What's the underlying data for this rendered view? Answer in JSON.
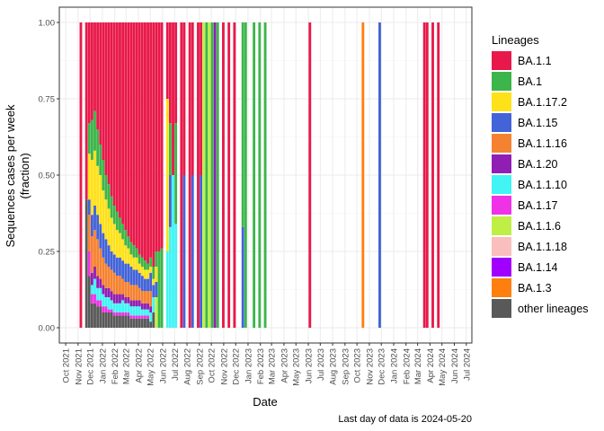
{
  "chart_data": {
    "type": "bar",
    "stacked": true,
    "xlabel": "Date",
    "ylabel_lines": [
      "Sequences cases per week",
      "(fraction)"
    ],
    "caption": "Last day of data is 2024-05-20",
    "legend_title": "Lineages",
    "legend_placement": "right",
    "grid": true,
    "x_ticks": [
      "Oct 2021",
      "Nov 2021",
      "Dec 2021",
      "Jan 2022",
      "Feb 2022",
      "Mar 2022",
      "Apr 2022",
      "May 2022",
      "Jun 2022",
      "Jul 2022",
      "Aug 2022",
      "Sep 2022",
      "Oct 2022",
      "Nov 2022",
      "Dec 2022",
      "Jan 2023",
      "Feb 2023",
      "Mar 2023",
      "Apr 2023",
      "May 2023",
      "Jun 2023",
      "Jul 2023",
      "Aug 2023",
      "Sep 2023",
      "Oct 2023",
      "Nov 2023",
      "Dec 2023",
      "Jan 2024",
      "Feb 2024",
      "Mar 2024",
      "Apr 2024",
      "May 2024",
      "Jun 2024",
      "Jul 2024"
    ],
    "xlim": [
      "2021-09-15",
      "2024-07-15"
    ],
    "ylim": [
      -0.05,
      1.05
    ],
    "y_ticks": [
      "0.00",
      "0.25",
      "0.50",
      "0.75",
      "1.00"
    ],
    "lineages": [
      {
        "name": "BA.1.1",
        "color": "#E8194A"
      },
      {
        "name": "BA.1",
        "color": "#3CB54A"
      },
      {
        "name": "BA.1.17.2",
        "color": "#FFE119"
      },
      {
        "name": "BA.1.15",
        "color": "#4363D8"
      },
      {
        "name": "BA.1.1.16",
        "color": "#F58231"
      },
      {
        "name": "BA.1.20",
        "color": "#911EB4"
      },
      {
        "name": "BA.1.1.10",
        "color": "#42F4F4"
      },
      {
        "name": "BA.1.17",
        "color": "#F032E6"
      },
      {
        "name": "BA.1.1.6",
        "color": "#BFEF45"
      },
      {
        "name": "BA.1.1.18",
        "color": "#FABEBE"
      },
      {
        "name": "BA.1.14",
        "color": "#A100FF"
      },
      {
        "name": "BA.1.3",
        "color": "#FF7F0E"
      },
      {
        "name": "other lineages",
        "color": "#595959"
      }
    ],
    "weeks": [
      {
        "date": "2021-11-08",
        "shares": {
          "BA.1.1": 1.0
        }
      },
      {
        "date": "2021-11-22",
        "shares": {
          "BA.1.1": 0.58,
          "BA.1": 0.0,
          "BA.1.1.16": 0.0,
          "other lineages": 0.42
        }
      },
      {
        "date": "2021-11-29",
        "shares": {
          "BA.1.1": 0.33,
          "BA.1": 0.1,
          "BA.1.17.2": 0.15,
          "BA.1.15": 0.05,
          "BA.1.1.16": 0.12,
          "BA.1.17": 0.08,
          "other lineages": 0.17
        }
      },
      {
        "date": "2021-12-06",
        "shares": {
          "BA.1.1": 0.32,
          "BA.1": 0.13,
          "BA.1.17.2": 0.18,
          "BA.1.15": 0.07,
          "BA.1.1.16": 0.12,
          "BA.1.20": 0.04,
          "BA.1.1.10": 0.03,
          "BA.1.17": 0.03,
          "other lineages": 0.08
        }
      },
      {
        "date": "2021-12-13",
        "shares": {
          "BA.1.1": 0.29,
          "BA.1": 0.13,
          "BA.1.17.2": 0.18,
          "BA.1.15": 0.08,
          "BA.1.1.16": 0.12,
          "BA.1.20": 0.04,
          "BA.1.1.10": 0.05,
          "BA.1.17": 0.03,
          "other lineages": 0.08
        }
      },
      {
        "date": "2021-12-20",
        "shares": {
          "BA.1.1": 0.35,
          "BA.1": 0.12,
          "BA.1.17.2": 0.16,
          "BA.1.15": 0.08,
          "BA.1.1.16": 0.12,
          "BA.1.20": 0.04,
          "BA.1.1.10": 0.04,
          "BA.1.17": 0.02,
          "other lineages": 0.07
        }
      },
      {
        "date": "2021-12-27",
        "shares": {
          "BA.1.1": 0.4,
          "BA.1": 0.1,
          "BA.1.17.2": 0.16,
          "BA.1.15": 0.08,
          "BA.1.1.16": 0.1,
          "BA.1.20": 0.03,
          "BA.1.1.10": 0.04,
          "BA.1.17": 0.02,
          "other lineages": 0.07
        }
      },
      {
        "date": "2022-01-03",
        "shares": {
          "BA.1.1": 0.45,
          "BA.1": 0.1,
          "BA.1.17.2": 0.14,
          "BA.1.15": 0.08,
          "BA.1.1.16": 0.09,
          "BA.1.20": 0.03,
          "BA.1.1.10": 0.04,
          "BA.1.17": 0.02,
          "other lineages": 0.05
        }
      },
      {
        "date": "2022-01-10",
        "shares": {
          "BA.1.1": 0.5,
          "BA.1": 0.08,
          "BA.1.17.2": 0.13,
          "BA.1.15": 0.08,
          "BA.1.1.16": 0.08,
          "BA.1.20": 0.03,
          "BA.1.1.10": 0.03,
          "BA.1.17": 0.02,
          "other lineages": 0.05
        }
      },
      {
        "date": "2022-01-17",
        "shares": {
          "BA.1.1": 0.53,
          "BA.1": 0.08,
          "BA.1.17.2": 0.12,
          "BA.1.15": 0.07,
          "BA.1.1.16": 0.07,
          "BA.1.20": 0.03,
          "BA.1.1.10": 0.04,
          "BA.1.17": 0.01,
          "other lineages": 0.05
        }
      },
      {
        "date": "2022-01-24",
        "shares": {
          "BA.1.1": 0.57,
          "BA.1": 0.07,
          "BA.1.17.2": 0.11,
          "BA.1.15": 0.06,
          "BA.1.1.16": 0.07,
          "BA.1.20": 0.03,
          "BA.1.1.10": 0.03,
          "BA.1.17": 0.01,
          "other lineages": 0.05
        }
      },
      {
        "date": "2022-01-31",
        "shares": {
          "BA.1.1": 0.6,
          "BA.1": 0.06,
          "BA.1.17.2": 0.1,
          "BA.1.15": 0.06,
          "BA.1.1.16": 0.07,
          "BA.1.20": 0.03,
          "BA.1.1.10": 0.03,
          "BA.1.17": 0.01,
          "other lineages": 0.04
        }
      },
      {
        "date": "2022-02-07",
        "shares": {
          "BA.1.1": 0.62,
          "BA.1": 0.06,
          "BA.1.17.2": 0.09,
          "BA.1.15": 0.06,
          "BA.1.1.16": 0.06,
          "BA.1.20": 0.03,
          "BA.1.1.10": 0.03,
          "BA.1.17": 0.01,
          "other lineages": 0.04
        }
      },
      {
        "date": "2022-02-14",
        "shares": {
          "BA.1.1": 0.64,
          "BA.1": 0.05,
          "BA.1.17.2": 0.08,
          "BA.1.15": 0.06,
          "BA.1.1.16": 0.06,
          "BA.1.20": 0.03,
          "BA.1.1.10": 0.03,
          "BA.1.17": 0.01,
          "other lineages": 0.04
        }
      },
      {
        "date": "2022-02-21",
        "shares": {
          "BA.1.1": 0.66,
          "BA.1": 0.05,
          "BA.1.17.2": 0.07,
          "BA.1.15": 0.06,
          "BA.1.1.16": 0.05,
          "BA.1.20": 0.02,
          "BA.1.1.10": 0.04,
          "BA.1.17": 0.01,
          "other lineages": 0.04
        }
      },
      {
        "date": "2022-02-28",
        "shares": {
          "BA.1.1": 0.68,
          "BA.1": 0.05,
          "BA.1.17.2": 0.06,
          "BA.1.15": 0.06,
          "BA.1.1.16": 0.05,
          "BA.1.20": 0.02,
          "BA.1.1.10": 0.03,
          "BA.1.17": 0.01,
          "other lineages": 0.04
        }
      },
      {
        "date": "2022-03-07",
        "shares": {
          "BA.1.1": 0.7,
          "BA.1": 0.04,
          "BA.1.17.2": 0.05,
          "BA.1.15": 0.06,
          "BA.1.1.16": 0.05,
          "BA.1.20": 0.02,
          "BA.1.1.10": 0.03,
          "BA.1.17": 0.01,
          "other lineages": 0.04
        }
      },
      {
        "date": "2022-03-14",
        "shares": {
          "BA.1.1": 0.72,
          "BA.1": 0.04,
          "BA.1.17.2": 0.04,
          "BA.1.15": 0.06,
          "BA.1.1.16": 0.05,
          "BA.1.20": 0.02,
          "BA.1.1.10": 0.03,
          "BA.1.17": 0.01,
          "other lineages": 0.03
        }
      },
      {
        "date": "2022-03-21",
        "shares": {
          "BA.1.1": 0.73,
          "BA.1": 0.04,
          "BA.1.17.2": 0.04,
          "BA.1.15": 0.05,
          "BA.1.1.16": 0.05,
          "BA.1.20": 0.02,
          "BA.1.1.10": 0.03,
          "BA.1.17": 0.01,
          "other lineages": 0.03
        }
      },
      {
        "date": "2022-03-28",
        "shares": {
          "BA.1.1": 0.74,
          "BA.1": 0.03,
          "BA.1.17.2": 0.04,
          "BA.1.15": 0.05,
          "BA.1.1.16": 0.05,
          "BA.1.20": 0.02,
          "BA.1.1.10": 0.03,
          "BA.1.17": 0.01,
          "other lineages": 0.03
        }
      },
      {
        "date": "2022-04-04",
        "shares": {
          "BA.1.1": 0.76,
          "BA.1": 0.03,
          "BA.1.17.2": 0.03,
          "BA.1.15": 0.05,
          "BA.1.1.16": 0.04,
          "BA.1.20": 0.02,
          "BA.1.1.10": 0.03,
          "BA.1.17": 0.01,
          "other lineages": 0.03
        }
      },
      {
        "date": "2022-04-11",
        "shares": {
          "BA.1.1": 0.77,
          "BA.1": 0.03,
          "BA.1.17.2": 0.03,
          "BA.1.15": 0.05,
          "BA.1.1.16": 0.04,
          "BA.1.20": 0.02,
          "BA.1.1.10": 0.02,
          "BA.1.17": 0.01,
          "other lineages": 0.03
        }
      },
      {
        "date": "2022-04-18",
        "shares": {
          "BA.1.1": 0.78,
          "BA.1": 0.03,
          "BA.1.17.2": 0.03,
          "BA.1.15": 0.04,
          "BA.1.1.16": 0.04,
          "BA.1.20": 0.02,
          "BA.1.1.10": 0.02,
          "BA.1.17": 0.01,
          "other lineages": 0.03
        }
      },
      {
        "date": "2022-04-25",
        "shares": {
          "BA.1.1": 0.79,
          "BA.1": 0.02,
          "BA.1.17.2": 0.03,
          "BA.1.15": 0.04,
          "BA.1.1.16": 0.04,
          "BA.1.20": 0.02,
          "BA.1.1.10": 0.02,
          "BA.1.17": 0.01,
          "other lineages": 0.03
        }
      },
      {
        "date": "2022-05-02",
        "shares": {
          "BA.1.1": 0.77,
          "BA.1": 0.03,
          "BA.1.17.2": 0.02,
          "BA.1.15": 0.06,
          "BA.1.1.16": 0.05,
          "BA.1.20": 0.02,
          "BA.1.1.10": 0.03,
          "other lineages": 0.02
        }
      },
      {
        "date": "2022-05-09",
        "shares": {
          "BA.1.1": 0.8,
          "BA.1": 0.04,
          "BA.1.17.2": 0.02,
          "BA.1.15": 0.04,
          "BA.1.1.10": 0.05,
          "other lineages": 0.05
        }
      },
      {
        "date": "2022-05-16",
        "shares": {
          "BA.1.1": 0.75,
          "BA.1": 0.05,
          "BA.1.17.2": 0.05,
          "BA.1.15": 0.05,
          "BA.1.1.6": 0.1
        }
      },
      {
        "date": "2022-05-23",
        "shares": {
          "BA.1.1": 0.75,
          "BA.1": 0.25
        }
      },
      {
        "date": "2022-05-30",
        "shares": {
          "BA.1.1": 0.74,
          "BA.1": 0.26
        }
      },
      {
        "date": "2022-06-13",
        "shares": {
          "BA.1.1": 0.25,
          "BA.1.17.2": 0.5,
          "BA.1.1.10": 0.25
        }
      },
      {
        "date": "2022-06-20",
        "shares": {
          "BA.1.1": 0.33,
          "BA.1": 0.17,
          "BA.1.15": 0.17,
          "BA.1.1.10": 0.33
        }
      },
      {
        "date": "2022-06-27",
        "shares": {
          "BA.1.1": 0.5,
          "BA.1.1.10": 0.5
        }
      },
      {
        "date": "2022-07-04",
        "shares": {
          "BA.1.1": 0.33,
          "BA.1": 0.33,
          "BA.1.1.10": 0.34
        }
      },
      {
        "date": "2022-07-18",
        "shares": {
          "BA.1.1": 1.0
        }
      },
      {
        "date": "2022-07-25",
        "shares": {
          "BA.1.1": 0.5,
          "BA.1.15": 0.5
        }
      },
      {
        "date": "2022-08-08",
        "shares": {
          "BA.1.1": 1.0
        }
      },
      {
        "date": "2022-08-15",
        "shares": {
          "BA.1.1": 0.5,
          "BA.1.15": 0.5
        }
      },
      {
        "date": "2022-08-29",
        "shares": {
          "BA.1.1": 1.0
        }
      },
      {
        "date": "2022-09-05",
        "shares": {
          "BA.1.1": 0.5,
          "BA.1.15": 0.5
        }
      },
      {
        "date": "2022-09-12",
        "shares": {
          "BA.1.1.6": 1.0
        }
      },
      {
        "date": "2022-09-19",
        "shares": {
          "BA.1": 1.0
        }
      },
      {
        "date": "2022-09-26",
        "shares": {
          "BA.1.1.6": 1.0
        }
      },
      {
        "date": "2022-10-03",
        "shares": {
          "BA.1": 1.0
        }
      },
      {
        "date": "2022-10-10",
        "shares": {
          "BA.1.20": 1.0
        }
      },
      {
        "date": "2022-10-17",
        "shares": {
          "BA.1": 1.0
        }
      },
      {
        "date": "2022-10-31",
        "shares": {
          "BA.1.1": 1.0
        }
      },
      {
        "date": "2022-11-14",
        "shares": {
          "BA.1.1": 1.0
        }
      },
      {
        "date": "2022-11-28",
        "shares": {
          "BA.1.1": 1.0
        }
      },
      {
        "date": "2022-12-19",
        "shares": {
          "BA.1": 0.67,
          "BA.1.15": 0.33
        }
      },
      {
        "date": "2022-12-26",
        "shares": {
          "BA.1": 1.0
        }
      },
      {
        "date": "2023-01-16",
        "shares": {
          "BA.1": 1.0
        }
      },
      {
        "date": "2023-01-30",
        "shares": {
          "BA.1": 1.0
        }
      },
      {
        "date": "2023-02-13",
        "shares": {
          "BA.1": 1.0
        }
      },
      {
        "date": "2023-06-05",
        "shares": {
          "BA.1.1": 1.0
        }
      },
      {
        "date": "2023-10-16",
        "shares": {
          "BA.1.3": 1.0
        }
      },
      {
        "date": "2023-11-27",
        "shares": {
          "BA.1.15": 1.0
        }
      },
      {
        "date": "2024-03-18",
        "shares": {
          "BA.1.1": 1.0
        }
      },
      {
        "date": "2024-03-25",
        "shares": {
          "BA.1.1": 1.0
        }
      },
      {
        "date": "2024-04-08",
        "shares": {
          "BA.1.1": 1.0
        }
      },
      {
        "date": "2024-04-22",
        "shares": {
          "BA.1.1": 1.0
        }
      }
    ]
  }
}
